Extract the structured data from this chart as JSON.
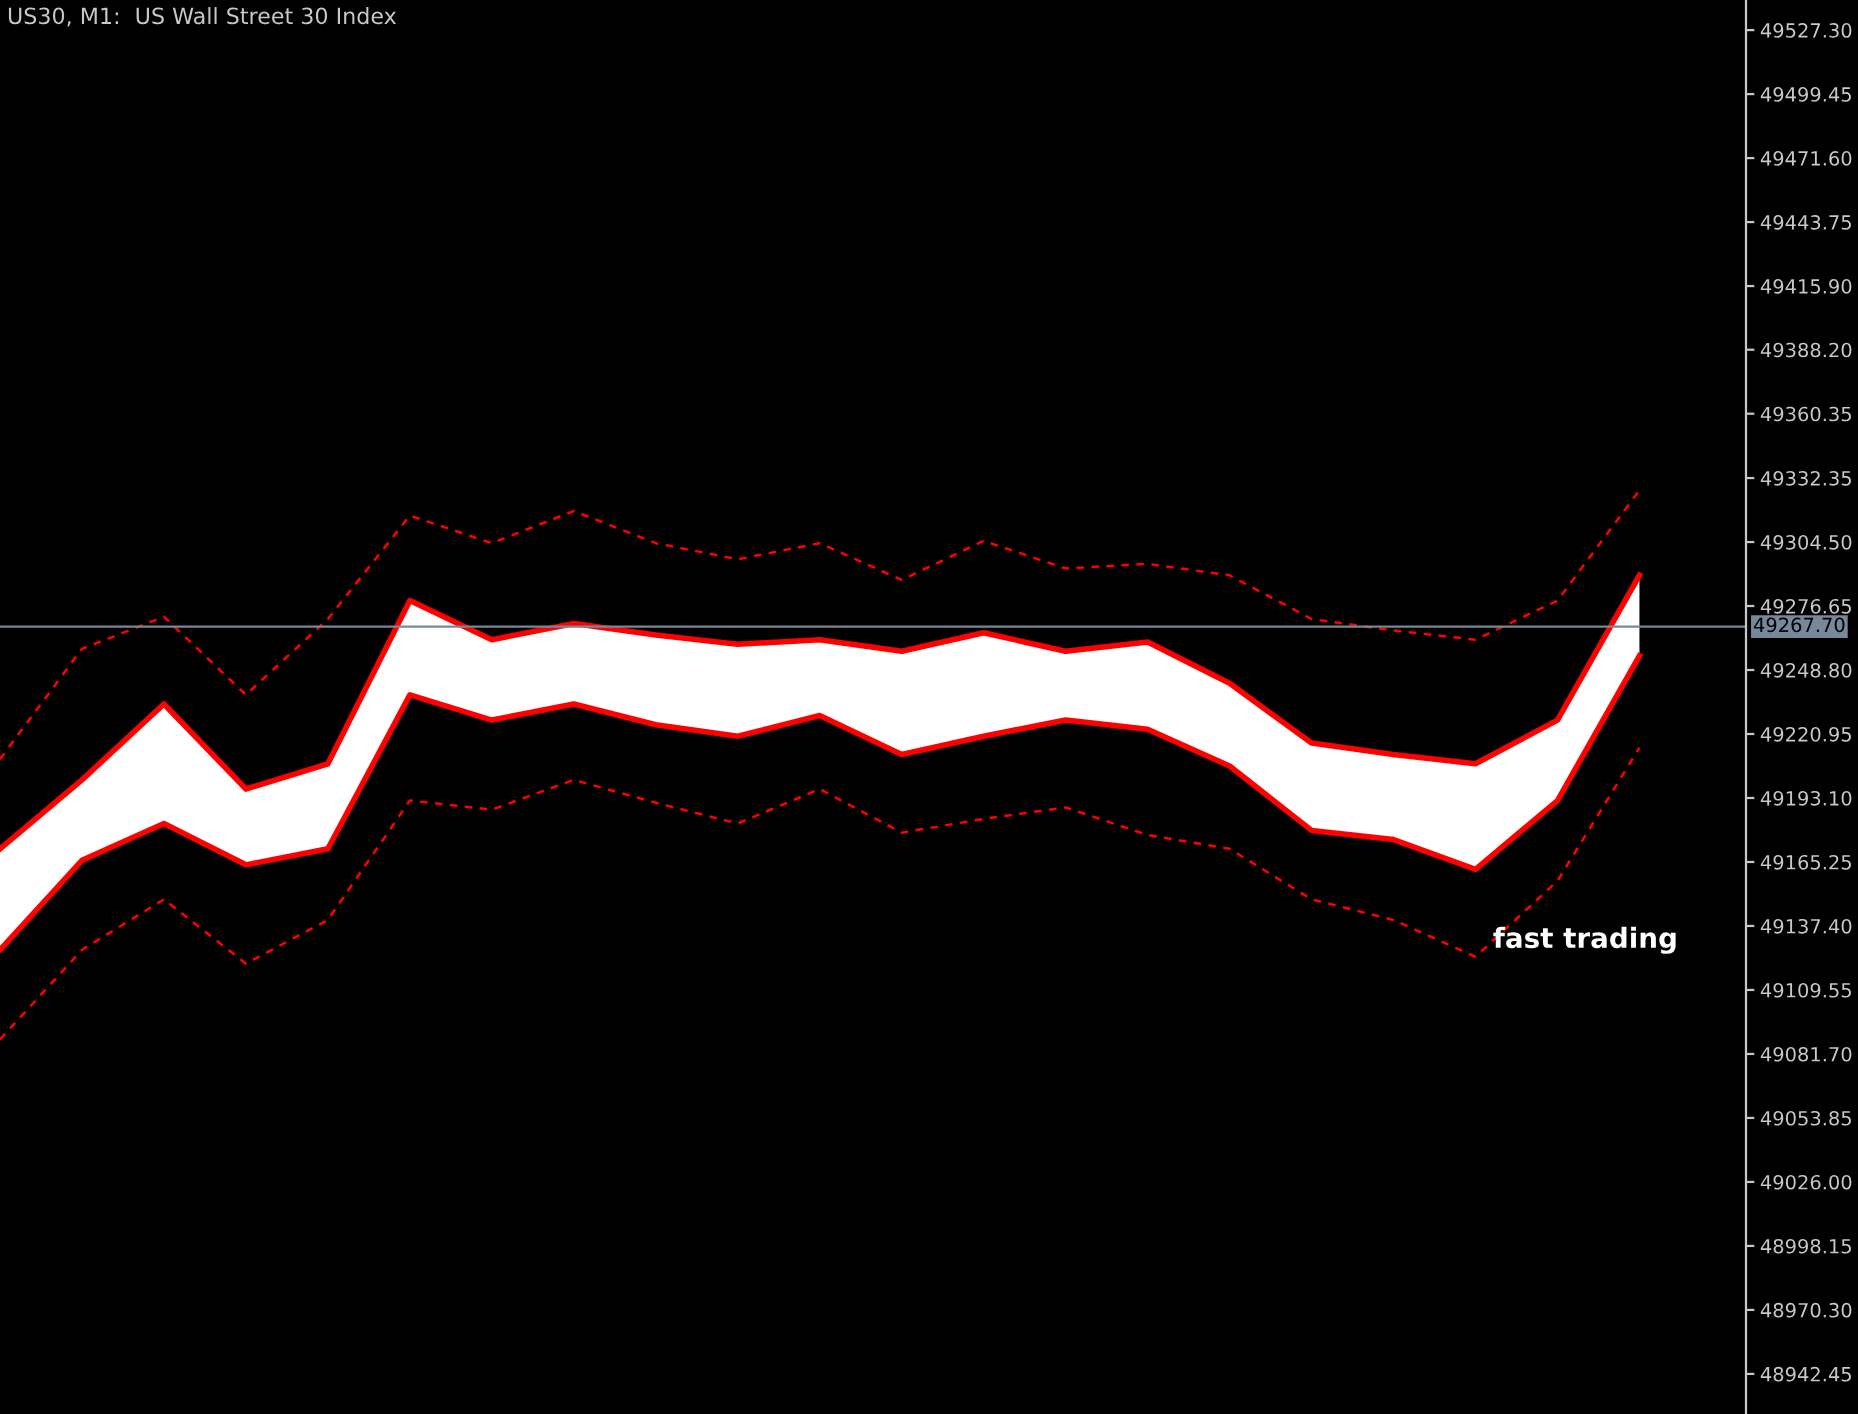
{
  "chart_data": {
    "type": "line",
    "title": "US30, M1:  US Wall Street 30 Index",
    "categories": [
      null,
      null,
      null,
      null,
      null,
      null,
      null,
      null,
      null,
      null,
      null,
      null,
      null,
      null,
      null,
      null,
      null,
      null,
      null,
      null,
      null
    ],
    "series": [
      {
        "color": "#ff0000",
        "values": [
          49171,
          49201,
          49234,
          49197,
          49208,
          49279,
          49262,
          49269,
          49264,
          49260,
          49262,
          49257,
          49265,
          49257,
          49261,
          49243,
          49217,
          49212,
          49208,
          49227,
          49290
        ],
        "lower": [
          49127,
          49166,
          49182,
          49164,
          49171,
          49238,
          49227,
          49234,
          49225,
          49220,
          49229,
          49212,
          49220,
          49227,
          49223,
          49207,
          49179,
          49175,
          49162,
          49192,
          49255
        ],
        "upper": [
          49171,
          49201,
          49234,
          49197,
          49208,
          49279,
          49262,
          49269,
          49264,
          49260,
          49262,
          49257,
          49265,
          49257,
          49261,
          49243,
          49217,
          49212,
          49208,
          49227,
          49290
        ]
      },
      {
        "color": "#ff0000",
        "values": [
          49127,
          49166,
          49182,
          49164,
          49171,
          49238,
          49227,
          49234,
          49225,
          49220,
          49229,
          49212,
          49220,
          49227,
          49223,
          49207,
          49179,
          49175,
          49162,
          49192,
          49255
        ]
      },
      {
        "color": "#ff0000",
        "line_style": "dashed",
        "values": [
          49210,
          49258,
          49272,
          49238,
          49271,
          49316,
          49304,
          49318,
          49304,
          49297,
          49304,
          49288,
          49305,
          49293,
          49295,
          49290,
          49271,
          49266,
          49262,
          49279,
          49327
        ]
      },
      {
        "color": "#ff0000",
        "line_style": "dashed",
        "values": [
          49088,
          49127,
          49149,
          49121,
          49140,
          49192,
          49188,
          49201,
          49191,
          49182,
          49197,
          49178,
          49184,
          49189,
          49177,
          49171,
          49149,
          49140,
          49124,
          49157,
          49215
        ]
      }
    ],
    "ylim": [
      48925.0,
      49540.4
    ],
    "yticks": [
      {
        "value": 49527.3,
        "label": "49527.30"
      },
      49499.45,
      {
        "value": 49471.6,
        "label": "49471.60"
      },
      49443.75,
      {
        "value": 49415.9,
        "label": "49415.90"
      },
      {
        "value": 49388.2,
        "label": "49388.20"
      },
      49360.35,
      49332.35,
      {
        "value": 49304.5,
        "label": "49304.50"
      },
      49276.65,
      {
        "value": 49248.8,
        "label": "49248.80"
      },
      49220.95,
      {
        "value": 49193.1,
        "label": "49193.10"
      },
      49165.25,
      {
        "value": 49137.4,
        "label": "49137.40"
      },
      49109.55,
      {
        "value": 49081.7,
        "label": "49081.70"
      },
      49053.85,
      {
        "value": 49026.0,
        "label": "49026.00"
      },
      48998.15,
      {
        "value": 48970.3,
        "label": "48970.30"
      },
      48942.45
    ],
    "ref_lines": [
      {
        "axis": "y",
        "value": 49267.7,
        "label": "49267.70",
        "color": "#778899"
      }
    ],
    "annotations": [
      "fast trading"
    ],
    "grid": false,
    "legend": false
  }
}
